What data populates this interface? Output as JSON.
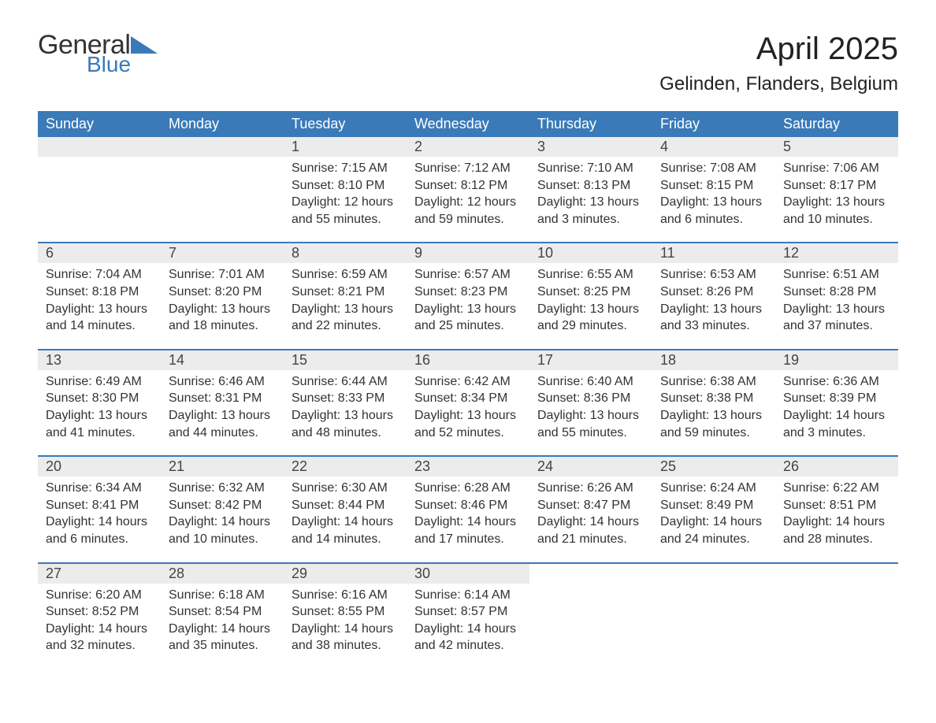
{
  "logo": {
    "word1": "General",
    "word2": "Blue",
    "color_dark": "#333333",
    "color_blue": "#3a7ab8"
  },
  "title": "April 2025",
  "location": "Gelinden, Flanders, Belgium",
  "header_bg": "#3a7ab8",
  "daynum_bg": "#ececec",
  "text_color": "#333333",
  "days_of_week": [
    "Sunday",
    "Monday",
    "Tuesday",
    "Wednesday",
    "Thursday",
    "Friday",
    "Saturday"
  ],
  "weeks": [
    [
      null,
      null,
      {
        "n": "1",
        "sr": "Sunrise: 7:15 AM",
        "ss": "Sunset: 8:10 PM",
        "d1": "Daylight: 12 hours",
        "d2": "and 55 minutes."
      },
      {
        "n": "2",
        "sr": "Sunrise: 7:12 AM",
        "ss": "Sunset: 8:12 PM",
        "d1": "Daylight: 12 hours",
        "d2": "and 59 minutes."
      },
      {
        "n": "3",
        "sr": "Sunrise: 7:10 AM",
        "ss": "Sunset: 8:13 PM",
        "d1": "Daylight: 13 hours",
        "d2": "and 3 minutes."
      },
      {
        "n": "4",
        "sr": "Sunrise: 7:08 AM",
        "ss": "Sunset: 8:15 PM",
        "d1": "Daylight: 13 hours",
        "d2": "and 6 minutes."
      },
      {
        "n": "5",
        "sr": "Sunrise: 7:06 AM",
        "ss": "Sunset: 8:17 PM",
        "d1": "Daylight: 13 hours",
        "d2": "and 10 minutes."
      }
    ],
    [
      {
        "n": "6",
        "sr": "Sunrise: 7:04 AM",
        "ss": "Sunset: 8:18 PM",
        "d1": "Daylight: 13 hours",
        "d2": "and 14 minutes."
      },
      {
        "n": "7",
        "sr": "Sunrise: 7:01 AM",
        "ss": "Sunset: 8:20 PM",
        "d1": "Daylight: 13 hours",
        "d2": "and 18 minutes."
      },
      {
        "n": "8",
        "sr": "Sunrise: 6:59 AM",
        "ss": "Sunset: 8:21 PM",
        "d1": "Daylight: 13 hours",
        "d2": "and 22 minutes."
      },
      {
        "n": "9",
        "sr": "Sunrise: 6:57 AM",
        "ss": "Sunset: 8:23 PM",
        "d1": "Daylight: 13 hours",
        "d2": "and 25 minutes."
      },
      {
        "n": "10",
        "sr": "Sunrise: 6:55 AM",
        "ss": "Sunset: 8:25 PM",
        "d1": "Daylight: 13 hours",
        "d2": "and 29 minutes."
      },
      {
        "n": "11",
        "sr": "Sunrise: 6:53 AM",
        "ss": "Sunset: 8:26 PM",
        "d1": "Daylight: 13 hours",
        "d2": "and 33 minutes."
      },
      {
        "n": "12",
        "sr": "Sunrise: 6:51 AM",
        "ss": "Sunset: 8:28 PM",
        "d1": "Daylight: 13 hours",
        "d2": "and 37 minutes."
      }
    ],
    [
      {
        "n": "13",
        "sr": "Sunrise: 6:49 AM",
        "ss": "Sunset: 8:30 PM",
        "d1": "Daylight: 13 hours",
        "d2": "and 41 minutes."
      },
      {
        "n": "14",
        "sr": "Sunrise: 6:46 AM",
        "ss": "Sunset: 8:31 PM",
        "d1": "Daylight: 13 hours",
        "d2": "and 44 minutes."
      },
      {
        "n": "15",
        "sr": "Sunrise: 6:44 AM",
        "ss": "Sunset: 8:33 PM",
        "d1": "Daylight: 13 hours",
        "d2": "and 48 minutes."
      },
      {
        "n": "16",
        "sr": "Sunrise: 6:42 AM",
        "ss": "Sunset: 8:34 PM",
        "d1": "Daylight: 13 hours",
        "d2": "and 52 minutes."
      },
      {
        "n": "17",
        "sr": "Sunrise: 6:40 AM",
        "ss": "Sunset: 8:36 PM",
        "d1": "Daylight: 13 hours",
        "d2": "and 55 minutes."
      },
      {
        "n": "18",
        "sr": "Sunrise: 6:38 AM",
        "ss": "Sunset: 8:38 PM",
        "d1": "Daylight: 13 hours",
        "d2": "and 59 minutes."
      },
      {
        "n": "19",
        "sr": "Sunrise: 6:36 AM",
        "ss": "Sunset: 8:39 PM",
        "d1": "Daylight: 14 hours",
        "d2": "and 3 minutes."
      }
    ],
    [
      {
        "n": "20",
        "sr": "Sunrise: 6:34 AM",
        "ss": "Sunset: 8:41 PM",
        "d1": "Daylight: 14 hours",
        "d2": "and 6 minutes."
      },
      {
        "n": "21",
        "sr": "Sunrise: 6:32 AM",
        "ss": "Sunset: 8:42 PM",
        "d1": "Daylight: 14 hours",
        "d2": "and 10 minutes."
      },
      {
        "n": "22",
        "sr": "Sunrise: 6:30 AM",
        "ss": "Sunset: 8:44 PM",
        "d1": "Daylight: 14 hours",
        "d2": "and 14 minutes."
      },
      {
        "n": "23",
        "sr": "Sunrise: 6:28 AM",
        "ss": "Sunset: 8:46 PM",
        "d1": "Daylight: 14 hours",
        "d2": "and 17 minutes."
      },
      {
        "n": "24",
        "sr": "Sunrise: 6:26 AM",
        "ss": "Sunset: 8:47 PM",
        "d1": "Daylight: 14 hours",
        "d2": "and 21 minutes."
      },
      {
        "n": "25",
        "sr": "Sunrise: 6:24 AM",
        "ss": "Sunset: 8:49 PM",
        "d1": "Daylight: 14 hours",
        "d2": "and 24 minutes."
      },
      {
        "n": "26",
        "sr": "Sunrise: 6:22 AM",
        "ss": "Sunset: 8:51 PM",
        "d1": "Daylight: 14 hours",
        "d2": "and 28 minutes."
      }
    ],
    [
      {
        "n": "27",
        "sr": "Sunrise: 6:20 AM",
        "ss": "Sunset: 8:52 PM",
        "d1": "Daylight: 14 hours",
        "d2": "and 32 minutes."
      },
      {
        "n": "28",
        "sr": "Sunrise: 6:18 AM",
        "ss": "Sunset: 8:54 PM",
        "d1": "Daylight: 14 hours",
        "d2": "and 35 minutes."
      },
      {
        "n": "29",
        "sr": "Sunrise: 6:16 AM",
        "ss": "Sunset: 8:55 PM",
        "d1": "Daylight: 14 hours",
        "d2": "and 38 minutes."
      },
      {
        "n": "30",
        "sr": "Sunrise: 6:14 AM",
        "ss": "Sunset: 8:57 PM",
        "d1": "Daylight: 14 hours",
        "d2": "and 42 minutes."
      },
      null,
      null,
      null
    ]
  ]
}
